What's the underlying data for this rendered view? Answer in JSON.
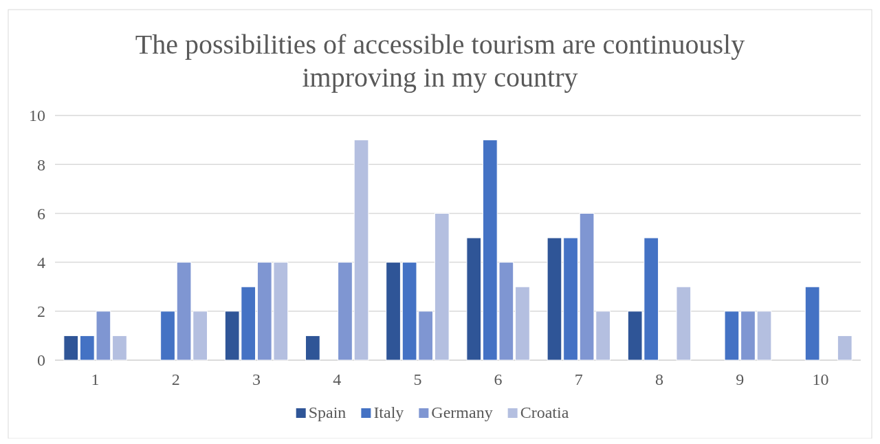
{
  "chart_data": {
    "type": "bar",
    "title": "The possibilities of accessible tourism are continuously improving in my country",
    "categories": [
      "1",
      "2",
      "3",
      "4",
      "5",
      "6",
      "7",
      "8",
      "9",
      "10"
    ],
    "series": [
      {
        "name": "Spain",
        "color": "#2f5597",
        "values": [
          1,
          0,
          2,
          1,
          4,
          5,
          5,
          2,
          0,
          0
        ]
      },
      {
        "name": "Italy",
        "color": "#4472c4",
        "values": [
          1,
          2,
          3,
          0,
          4,
          9,
          5,
          5,
          2,
          3
        ]
      },
      {
        "name": "Germany",
        "color": "#7f96d2",
        "values": [
          2,
          4,
          4,
          4,
          2,
          4,
          6,
          0,
          2,
          0
        ]
      },
      {
        "name": "Croatia",
        "color": "#b4bfe0",
        "values": [
          1,
          2,
          4,
          9,
          6,
          3,
          2,
          3,
          2,
          1
        ]
      }
    ],
    "ylim": [
      0,
      10
    ],
    "yticks": [
      0,
      2,
      4,
      6,
      8,
      10
    ],
    "grid": "y",
    "legend": "bottom"
  }
}
